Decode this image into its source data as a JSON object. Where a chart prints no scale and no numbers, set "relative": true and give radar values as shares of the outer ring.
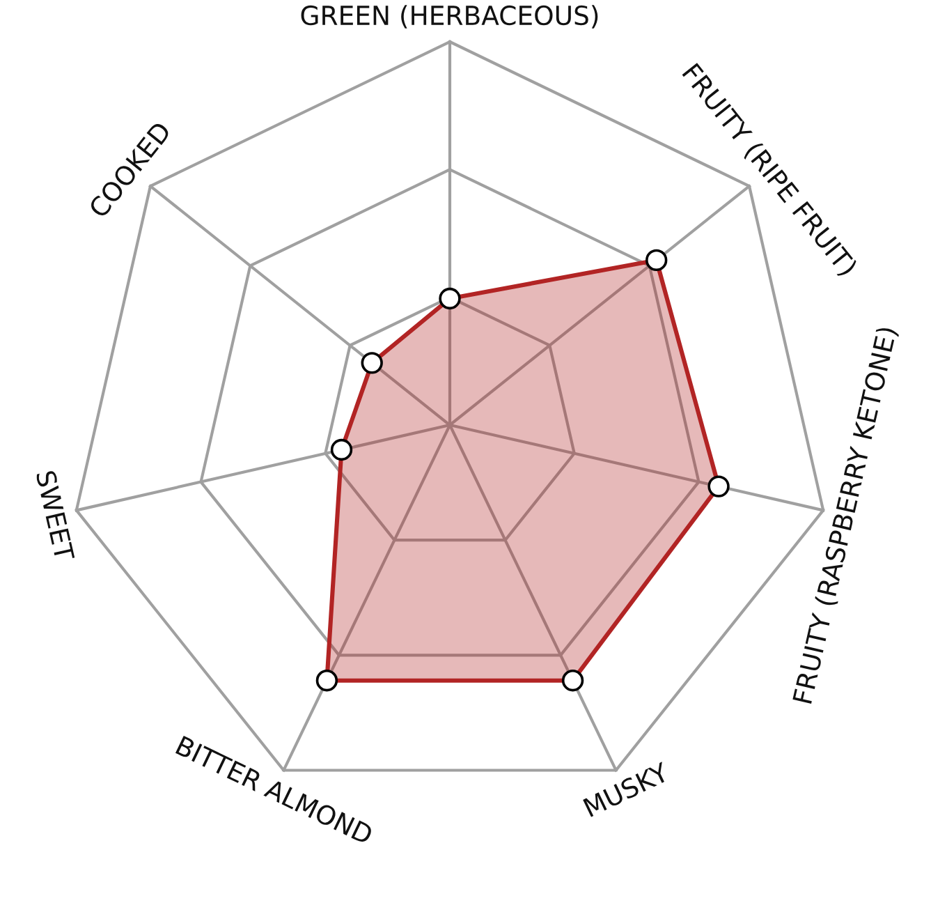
{
  "chart_data": {
    "type": "radar",
    "relative": true,
    "categories": [
      "GREEN (HERBACEOUS)",
      "FRUITY (RIPE FRUIT)",
      "FRUITY (RASPBERRY KETONE)",
      "MUSKY",
      "BITTER ALMOND",
      "SWEET",
      "COOKED"
    ],
    "series": [
      {
        "color": "#b22424",
        "values": [
          0.33,
          0.69,
          0.72,
          0.74,
          0.74,
          0.29,
          0.26
        ]
      }
    ],
    "marker": "circle",
    "line_style": "solid",
    "grid": true,
    "legend": false
  }
}
